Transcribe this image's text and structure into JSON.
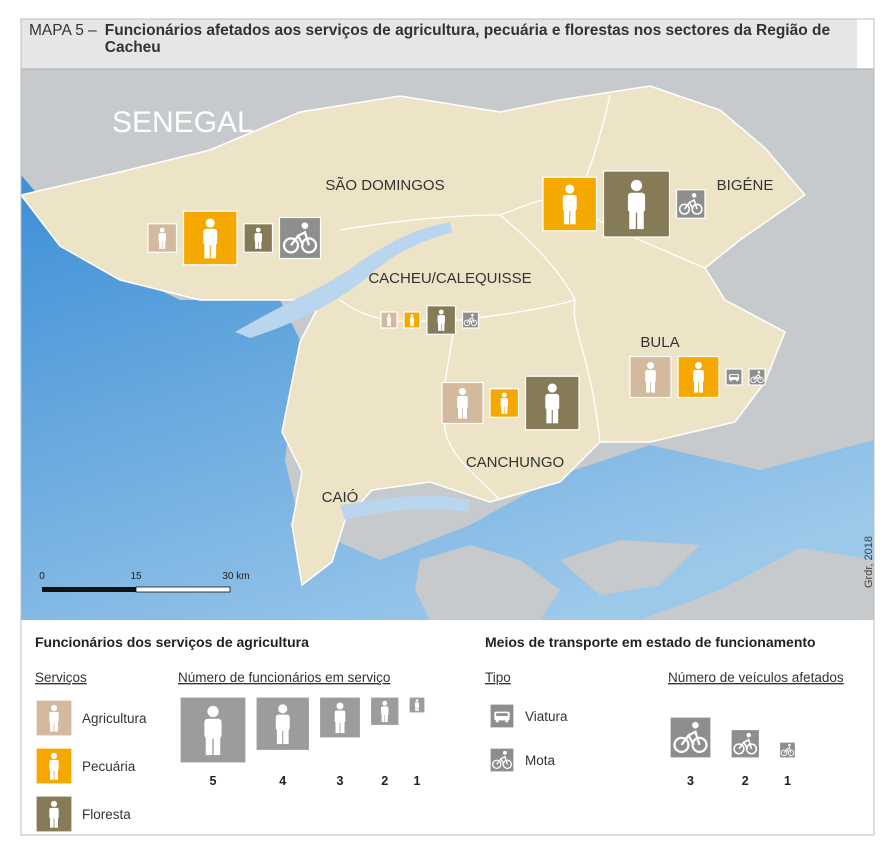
{
  "title": {
    "prefix": "MAPA 5 –",
    "text": "Funcionários afetados aos serviços de agricultura, pecuária e florestas nos sectores da Região de Cacheu"
  },
  "map": {
    "country_label": "SENEGAL",
    "sectors": [
      {
        "name": "SÃO DOMINGOS",
        "agricultura": 2,
        "pecuaria": 4,
        "floresta": 2,
        "mota": 3
      },
      {
        "name": "BIGÉNE",
        "pecuaria": 4,
        "floresta": 5,
        "mota": 2
      },
      {
        "name": "CACHEU/CALEQUISSE",
        "agricultura": 1,
        "pecuaria": 1,
        "floresta": 2,
        "mota": 1
      },
      {
        "name": "BULA",
        "agricultura": 3,
        "pecuaria": 3,
        "viatura": 1,
        "mota": 1
      },
      {
        "name": "CANCHUNGO",
        "agricultura": 3,
        "pecuaria": 2,
        "floresta": 4
      },
      {
        "name": "CAIÓ"
      }
    ],
    "scale": [
      "0",
      "15",
      "30 km"
    ],
    "credit": "Grdr, 2018"
  },
  "legend": {
    "staff": {
      "title": "Funcionários dos serviços de agricultura",
      "services_heading": "Serviços",
      "services": [
        {
          "label": "Agricultura",
          "color": "#d3b99d"
        },
        {
          "label": "Pecuária",
          "color": "#f5a900"
        },
        {
          "label": "Floresta",
          "color": "#857b57"
        }
      ],
      "count_heading": "Número de funcionários em serviço",
      "counts": [
        5,
        4,
        3,
        2,
        1
      ],
      "color": "#9c9c9c"
    },
    "transport": {
      "title": "Meios de transporte em estado de funcionamento",
      "type_heading": "Tipo",
      "types": [
        {
          "label": "Viatura"
        },
        {
          "label": "Mota"
        }
      ],
      "count_heading": "Número de veículos afetados",
      "counts": [
        3,
        2,
        1
      ],
      "color": "#8e8e8e"
    }
  }
}
